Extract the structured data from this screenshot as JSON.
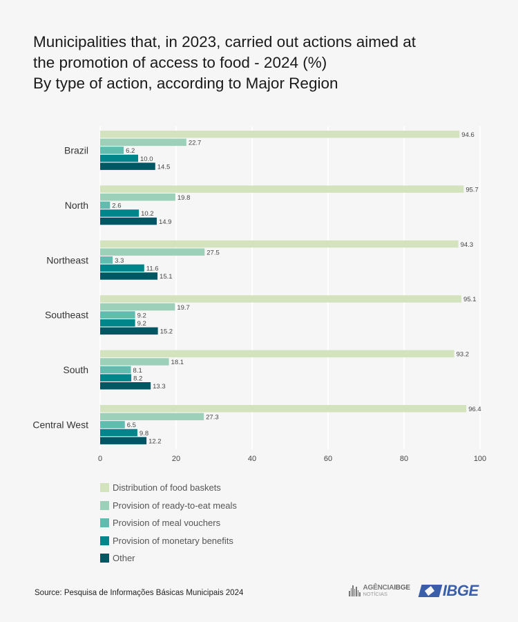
{
  "title_lines": [
    "Municipalities that, in 2023, carried out actions aimed at",
    "the promotion of access to food - 2024 (%)",
    "By type of action, according to Major Region"
  ],
  "source": "Source: Pesquisa de Informações Básicas Municipais 2024",
  "logos": {
    "agencia_top_a": "AGÊNCIA",
    "agencia_top_b": "IBGE",
    "agencia_bottom": "NOTÍCIAS",
    "ibge": "IBGE"
  },
  "chart_data": {
    "type": "bar",
    "orientation": "horizontal",
    "title": "Municipalities that, in 2023, carried out actions aimed at the promotion of access to food - 2024 (%) — By type of action, according to Major Region",
    "categories": [
      "Brazil",
      "North",
      "Northeast",
      "Southeast",
      "South",
      "Central West"
    ],
    "series": [
      {
        "name": "Distribution of food baskets",
        "color": "#d2e3bd",
        "values": [
          94.6,
          95.7,
          94.3,
          95.1,
          93.2,
          96.4
        ]
      },
      {
        "name": "Provision of ready-to-eat meals",
        "color": "#9dd0b9",
        "values": [
          22.7,
          19.8,
          27.5,
          19.7,
          18.1,
          27.3
        ]
      },
      {
        "name": "Provision of meal vouchers",
        "color": "#5fbcaf",
        "values": [
          6.2,
          2.6,
          3.3,
          9.2,
          8.1,
          6.5
        ]
      },
      {
        "name": "Provision of monetary benefits",
        "color": "#00868a",
        "values": [
          10.0,
          10.2,
          11.6,
          9.2,
          8.2,
          9.8
        ]
      },
      {
        "name": "Other",
        "color": "#005663",
        "values": [
          14.5,
          14.9,
          15.1,
          15.2,
          13.3,
          12.2
        ]
      }
    ],
    "xlim": [
      0,
      100
    ],
    "xticks": [
      0,
      20,
      40,
      60,
      80,
      100
    ],
    "xlabel": "",
    "ylabel": "",
    "grid": true,
    "legend_position": "bottom-left"
  }
}
